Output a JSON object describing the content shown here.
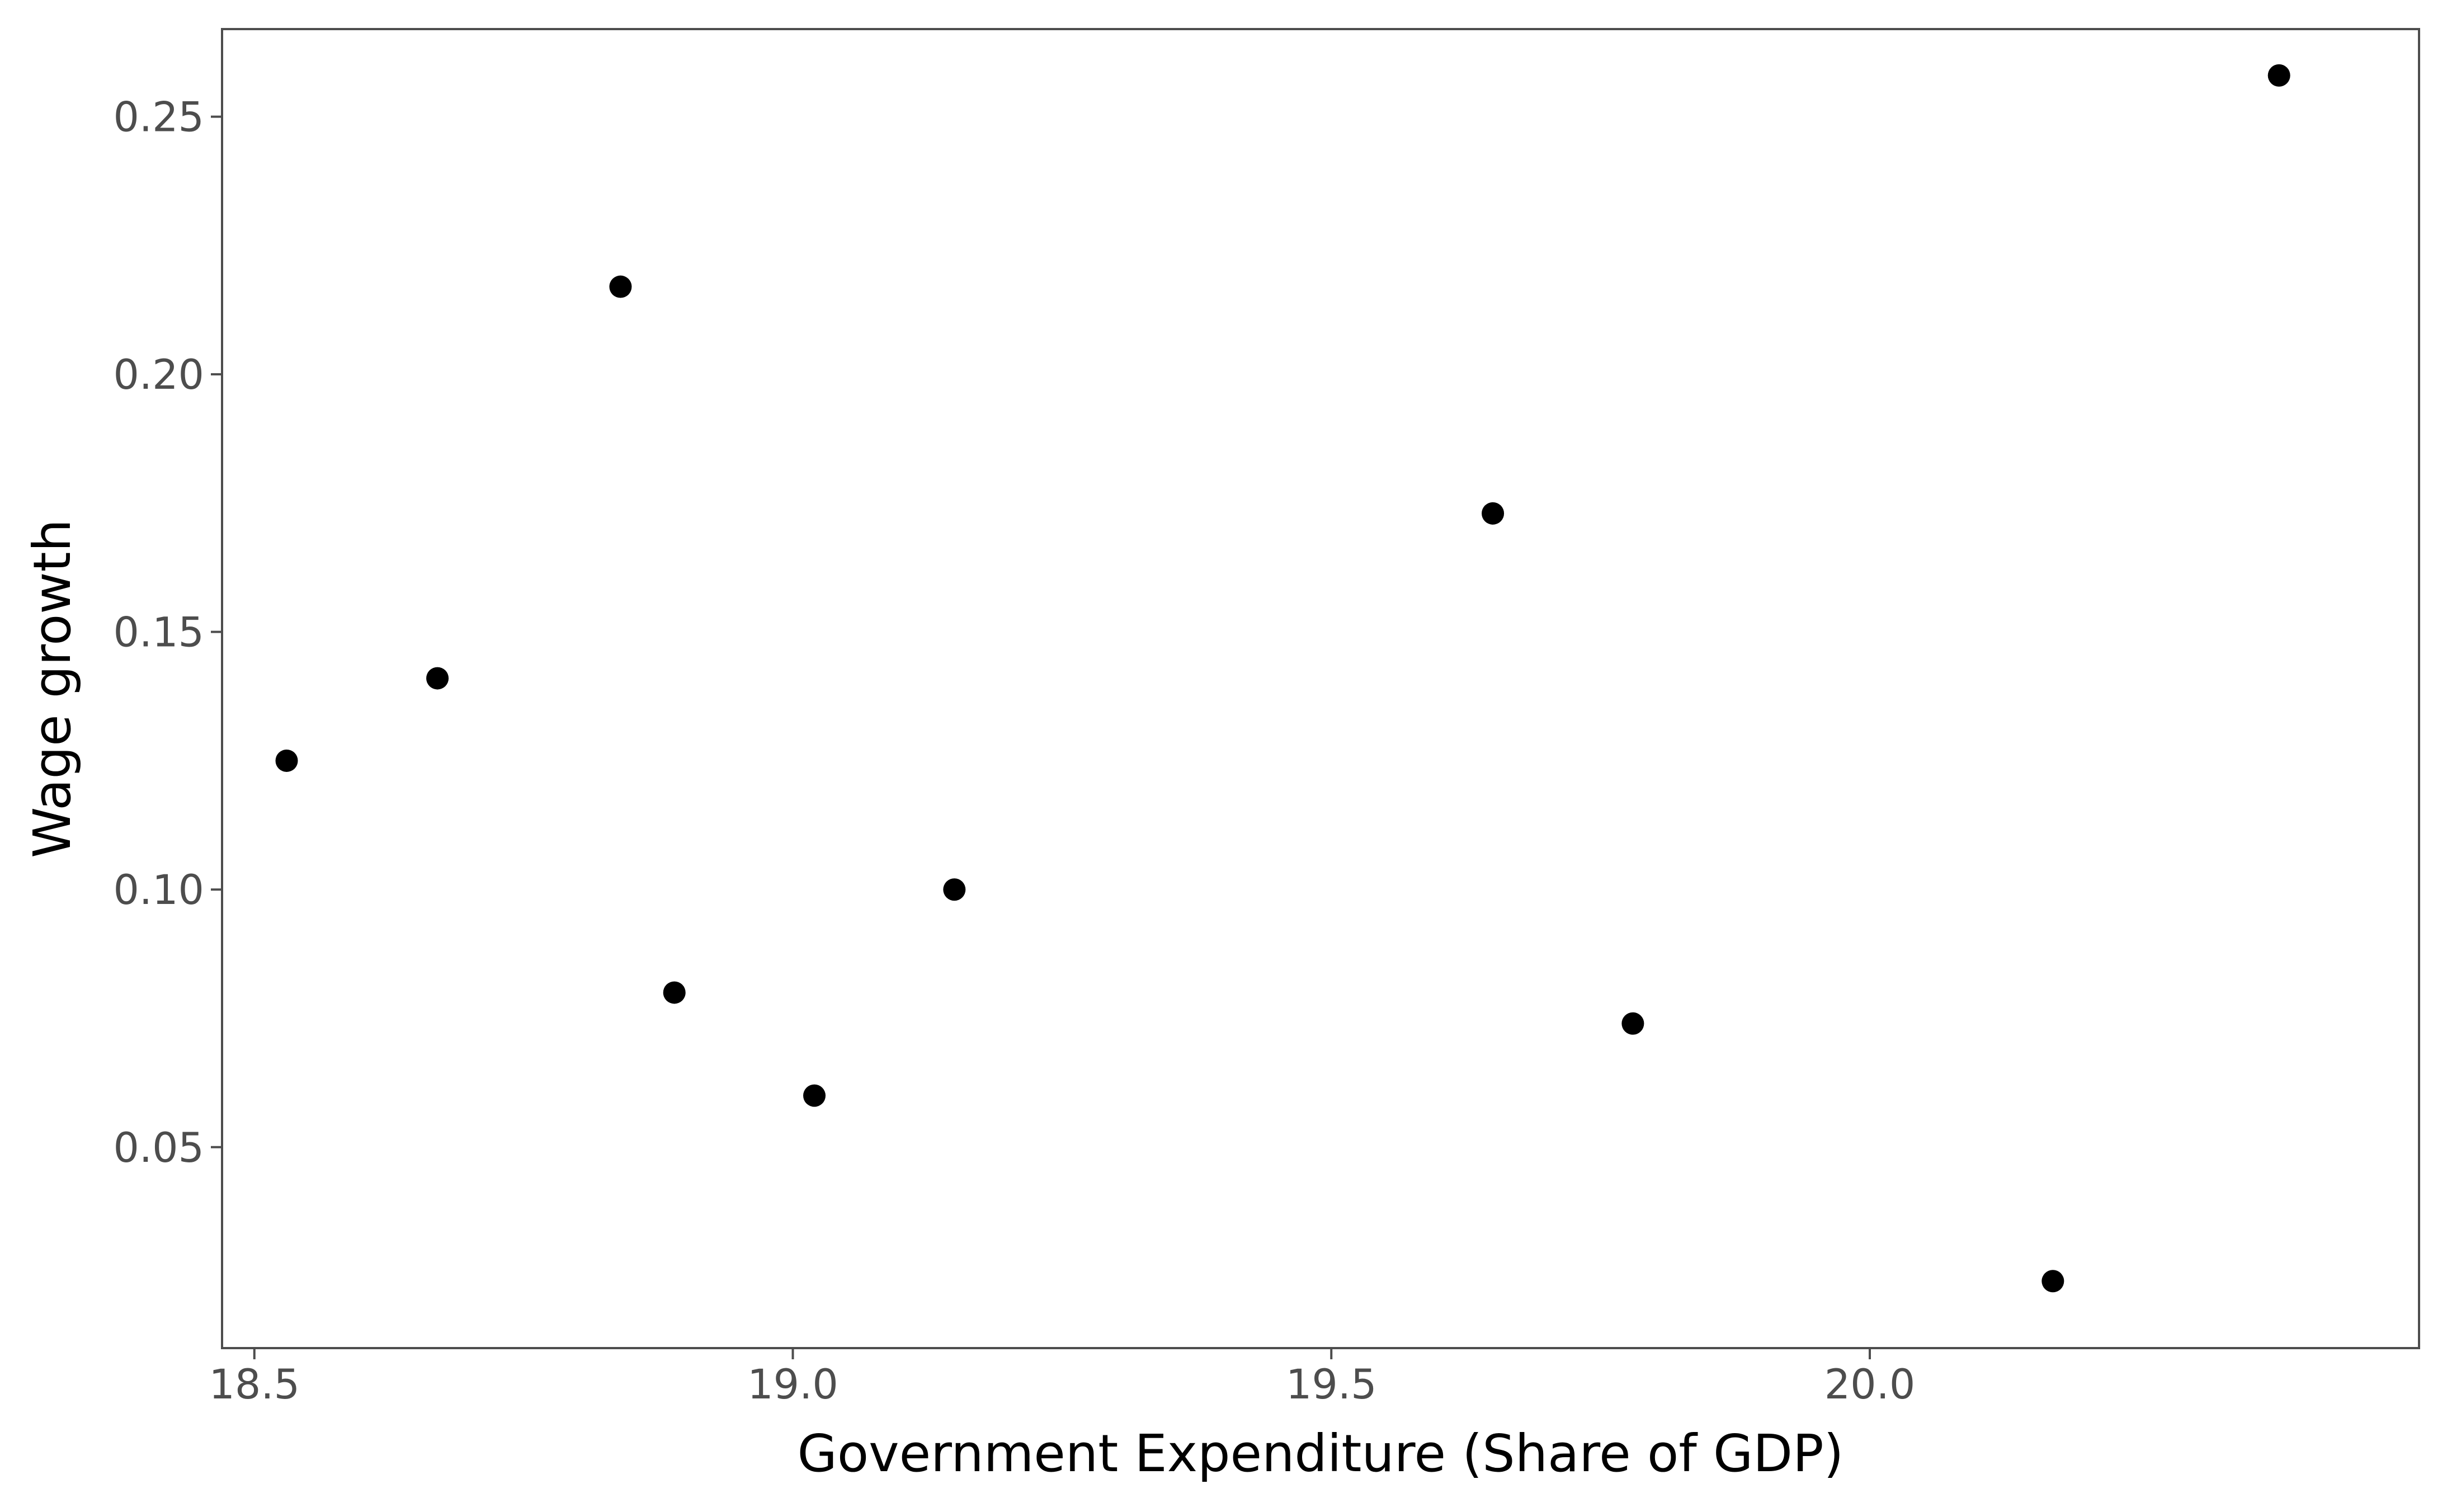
{
  "chart_data": {
    "type": "scatter",
    "title": "",
    "xlabel": "Government Expenditure (Share of GDP)",
    "ylabel": "Wage growth",
    "xlim": [
      18.47,
      20.51
    ],
    "ylim": [
      0.011,
      0.267
    ],
    "xticks": [
      18.5,
      19.0,
      19.5,
      20.0
    ],
    "xtick_labels": [
      "18.5",
      "19.0",
      "19.5",
      "20.0"
    ],
    "yticks": [
      0.05,
      0.1,
      0.15,
      0.2,
      0.25
    ],
    "ytick_labels": [
      "0.05",
      "0.10",
      "0.15",
      "0.20",
      "0.25"
    ],
    "grid": false,
    "point_color": "#000000",
    "frame_color": "#4d4d4d",
    "points": [
      {
        "x": 18.53,
        "y": 0.125
      },
      {
        "x": 18.67,
        "y": 0.141
      },
      {
        "x": 18.84,
        "y": 0.217
      },
      {
        "x": 18.89,
        "y": 0.08
      },
      {
        "x": 19.02,
        "y": 0.06
      },
      {
        "x": 19.15,
        "y": 0.1
      },
      {
        "x": 19.65,
        "y": 0.173
      },
      {
        "x": 19.78,
        "y": 0.074
      },
      {
        "x": 20.17,
        "y": 0.024
      },
      {
        "x": 20.38,
        "y": 0.258
      }
    ]
  }
}
